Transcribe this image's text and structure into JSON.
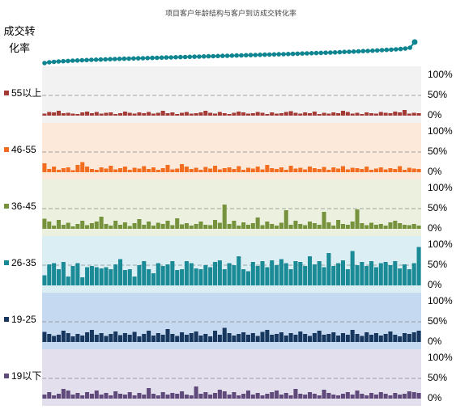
{
  "chart_data": {
    "type": "panel-bar",
    "title": "项目客户年龄结构与客户到访成交转化率",
    "conversion": {
      "label": "成交转化率",
      "color": "#0e8590",
      "ylim": [
        0,
        50
      ],
      "values": [
        17,
        18,
        18.5,
        19,
        19.3,
        19.6,
        20,
        20.2,
        20.5,
        20.7,
        21,
        21.2,
        21.4,
        21.6,
        21.8,
        22,
        22.2,
        22.4,
        22.5,
        22.7,
        22.9,
        23,
        23.2,
        23.4,
        23.5,
        23.7,
        23.9,
        24,
        24.2,
        24.4,
        24.5,
        24.7,
        24.9,
        25,
        25.2,
        25.4,
        25.5,
        25.7,
        25.9,
        26,
        26.2,
        26.4,
        26.5,
        26.7,
        26.9,
        27,
        27.2,
        27.4,
        27.5,
        27.7,
        27.9,
        28,
        28.2,
        28.4,
        28.6,
        28.8,
        29,
        29.2,
        29.4,
        29.6,
        29.8,
        30,
        30.2,
        30.5,
        30.8,
        31,
        31.2,
        31.5,
        31.8,
        32,
        32.3,
        32.6,
        33,
        33.3,
        33.6,
        34,
        34.4,
        35,
        36,
        43
      ]
    },
    "ylim": [
      0,
      100
    ],
    "yticks": [
      {
        "value": 0,
        "label": "0%"
      },
      {
        "value": 50,
        "label": "50%"
      },
      {
        "value": 100,
        "label": "100%"
      }
    ],
    "series": [
      {
        "name": "55以上",
        "color": "#a33a35",
        "background": "#f2f2f2",
        "values": [
          5,
          9,
          8,
          12,
          6,
          7,
          5,
          4,
          8,
          10,
          6,
          9,
          5,
          7,
          8,
          4,
          6,
          10,
          7,
          5,
          8,
          6,
          9,
          5,
          7,
          12,
          6,
          8,
          4,
          7,
          9,
          5,
          6,
          8,
          12,
          7,
          5,
          9,
          6,
          4,
          7,
          10,
          8,
          5,
          6,
          9,
          7,
          4,
          8,
          5,
          6,
          9,
          11,
          7,
          5,
          8,
          6,
          10,
          4,
          7,
          5,
          8,
          6,
          12,
          9,
          5,
          7,
          4,
          8,
          6,
          5,
          9,
          7,
          6,
          10,
          8,
          14,
          5,
          7,
          6
        ]
      },
      {
        "name": "46-55",
        "color": "#f26d1f",
        "background": "#fde9d9",
        "values": [
          22,
          8,
          14,
          6,
          10,
          12,
          5,
          18,
          25,
          14,
          8,
          6,
          12,
          9,
          16,
          7,
          10,
          14,
          6,
          11,
          9,
          15,
          8,
          12,
          6,
          10,
          18,
          7,
          9,
          20,
          14,
          8,
          11,
          6,
          13,
          9,
          16,
          7,
          10,
          12,
          8,
          15,
          6,
          11,
          9,
          14,
          7,
          18,
          10,
          8,
          12,
          6,
          16,
          9,
          11,
          7,
          14,
          10,
          8,
          13,
          6,
          12,
          9,
          15,
          7,
          11,
          10,
          8,
          14,
          6,
          9,
          12,
          7,
          10,
          8,
          15,
          6,
          11,
          9,
          8
        ]
      },
      {
        "name": "36-45",
        "color": "#76923c",
        "background": "#ebf1de",
        "values": [
          25,
          18,
          8,
          22,
          10,
          15,
          6,
          12,
          20,
          9,
          14,
          18,
          30,
          12,
          8,
          20,
          10,
          16,
          7,
          14,
          24,
          10,
          18,
          8,
          15,
          12,
          20,
          9,
          26,
          11,
          14,
          8,
          12,
          18,
          10,
          9,
          22,
          15,
          60,
          12,
          20,
          8,
          16,
          10,
          14,
          28,
          9,
          18,
          12,
          8,
          15,
          46,
          10,
          20,
          12,
          9,
          18,
          14,
          10,
          42,
          16,
          8,
          22,
          12,
          10,
          18,
          48,
          14,
          9,
          15,
          10,
          12,
          8,
          16,
          20,
          14,
          10,
          9,
          12,
          8
        ]
      },
      {
        "name": "26-35",
        "color": "#1a8b96",
        "background": "#daeef3",
        "values": [
          25,
          52,
          55,
          40,
          58,
          22,
          48,
          55,
          20,
          45,
          48,
          45,
          42,
          45,
          40,
          52,
          65,
          38,
          40,
          22,
          50,
          60,
          40,
          30,
          55,
          48,
          52,
          60,
          38,
          40,
          60,
          55,
          42,
          40,
          50,
          45,
          58,
          62,
          40,
          55,
          50,
          72,
          40,
          35,
          58,
          48,
          60,
          45,
          62,
          50,
          65,
          55,
          40,
          60,
          58,
          48,
          72,
          52,
          60,
          45,
          80,
          48,
          55,
          62,
          40,
          85,
          50,
          58,
          48,
          60,
          45,
          55,
          58,
          50,
          60,
          42,
          52,
          40,
          55,
          95
        ]
      },
      {
        "name": "19-25",
        "color": "#17375e",
        "background": "#c5d9f1",
        "values": [
          25,
          20,
          15,
          18,
          28,
          22,
          14,
          20,
          16,
          24,
          30,
          18,
          22,
          15,
          20,
          26,
          17,
          22,
          18,
          25,
          14,
          20,
          28,
          16,
          22,
          18,
          32,
          20,
          15,
          24,
          18,
          22,
          26,
          16,
          20,
          14,
          28,
          18,
          35,
          22,
          16,
          20,
          24,
          18,
          22,
          15,
          25,
          30,
          18,
          20,
          24,
          16,
          22,
          18,
          26,
          20,
          15,
          22,
          28,
          18,
          20,
          24,
          16,
          22,
          18,
          30,
          20,
          15,
          24,
          18,
          22,
          16,
          20,
          26,
          18,
          14,
          22,
          20,
          24,
          28
        ]
      },
      {
        "name": "19以下",
        "color": "#604a7b",
        "background": "#e4dfec",
        "values": [
          10,
          16,
          8,
          12,
          24,
          20,
          10,
          14,
          8,
          16,
          12,
          20,
          10,
          14,
          8,
          18,
          12,
          10,
          16,
          8,
          14,
          10,
          26,
          12,
          8,
          16,
          10,
          14,
          12,
          18,
          10,
          8,
          30,
          12,
          16,
          10,
          14,
          22,
          18,
          10,
          16,
          8,
          12,
          20,
          10,
          14,
          8,
          12,
          16,
          20,
          10,
          14,
          8,
          24,
          12,
          10,
          16,
          12,
          8,
          22,
          14,
          10,
          8,
          12,
          16,
          10,
          20,
          12,
          8,
          14,
          10,
          16,
          12,
          8,
          14,
          10,
          12,
          18,
          16,
          14
        ]
      }
    ]
  }
}
